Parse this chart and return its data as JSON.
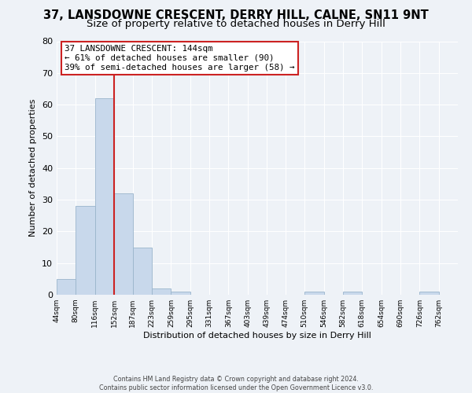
{
  "title": "37, LANSDOWNE CRESCENT, DERRY HILL, CALNE, SN11 9NT",
  "subtitle": "Size of property relative to detached houses in Derry Hill",
  "xlabel": "Distribution of detached houses by size in Derry Hill",
  "ylabel": "Number of detached properties",
  "bar_values": [
    5,
    28,
    62,
    32,
    15,
    2,
    1,
    0,
    0,
    0,
    0,
    0,
    0,
    1,
    0,
    1,
    0,
    0,
    0,
    1,
    0
  ],
  "bin_labels": [
    "44sqm",
    "80sqm",
    "116sqm",
    "152sqm",
    "187sqm",
    "223sqm",
    "259sqm",
    "295sqm",
    "331sqm",
    "367sqm",
    "403sqm",
    "439sqm",
    "474sqm",
    "510sqm",
    "546sqm",
    "582sqm",
    "618sqm",
    "654sqm",
    "690sqm",
    "726sqm",
    "762sqm"
  ],
  "bin_edges": [
    44,
    80,
    116,
    152,
    187,
    223,
    259,
    295,
    331,
    367,
    403,
    439,
    474,
    510,
    546,
    582,
    618,
    654,
    690,
    726,
    762
  ],
  "bar_color": "#c8d8eb",
  "bar_edgecolor": "#9ab5cc",
  "vline_x": 152,
  "vline_color": "#cc2222",
  "ylim": [
    0,
    80
  ],
  "yticks": [
    0,
    10,
    20,
    30,
    40,
    50,
    60,
    70,
    80
  ],
  "annotation_text": "37 LANSDOWNE CRESCENT: 144sqm\n← 61% of detached houses are smaller (90)\n39% of semi-detached houses are larger (58) →",
  "annotation_box_color": "#ffffff",
  "annotation_box_edgecolor": "#cc2222",
  "footer_text": "Contains HM Land Registry data © Crown copyright and database right 2024.\nContains public sector information licensed under the Open Government Licence v3.0.",
  "background_color": "#eef2f7",
  "title_fontsize": 10.5,
  "subtitle_fontsize": 9.5,
  "grid_color": "#ffffff"
}
